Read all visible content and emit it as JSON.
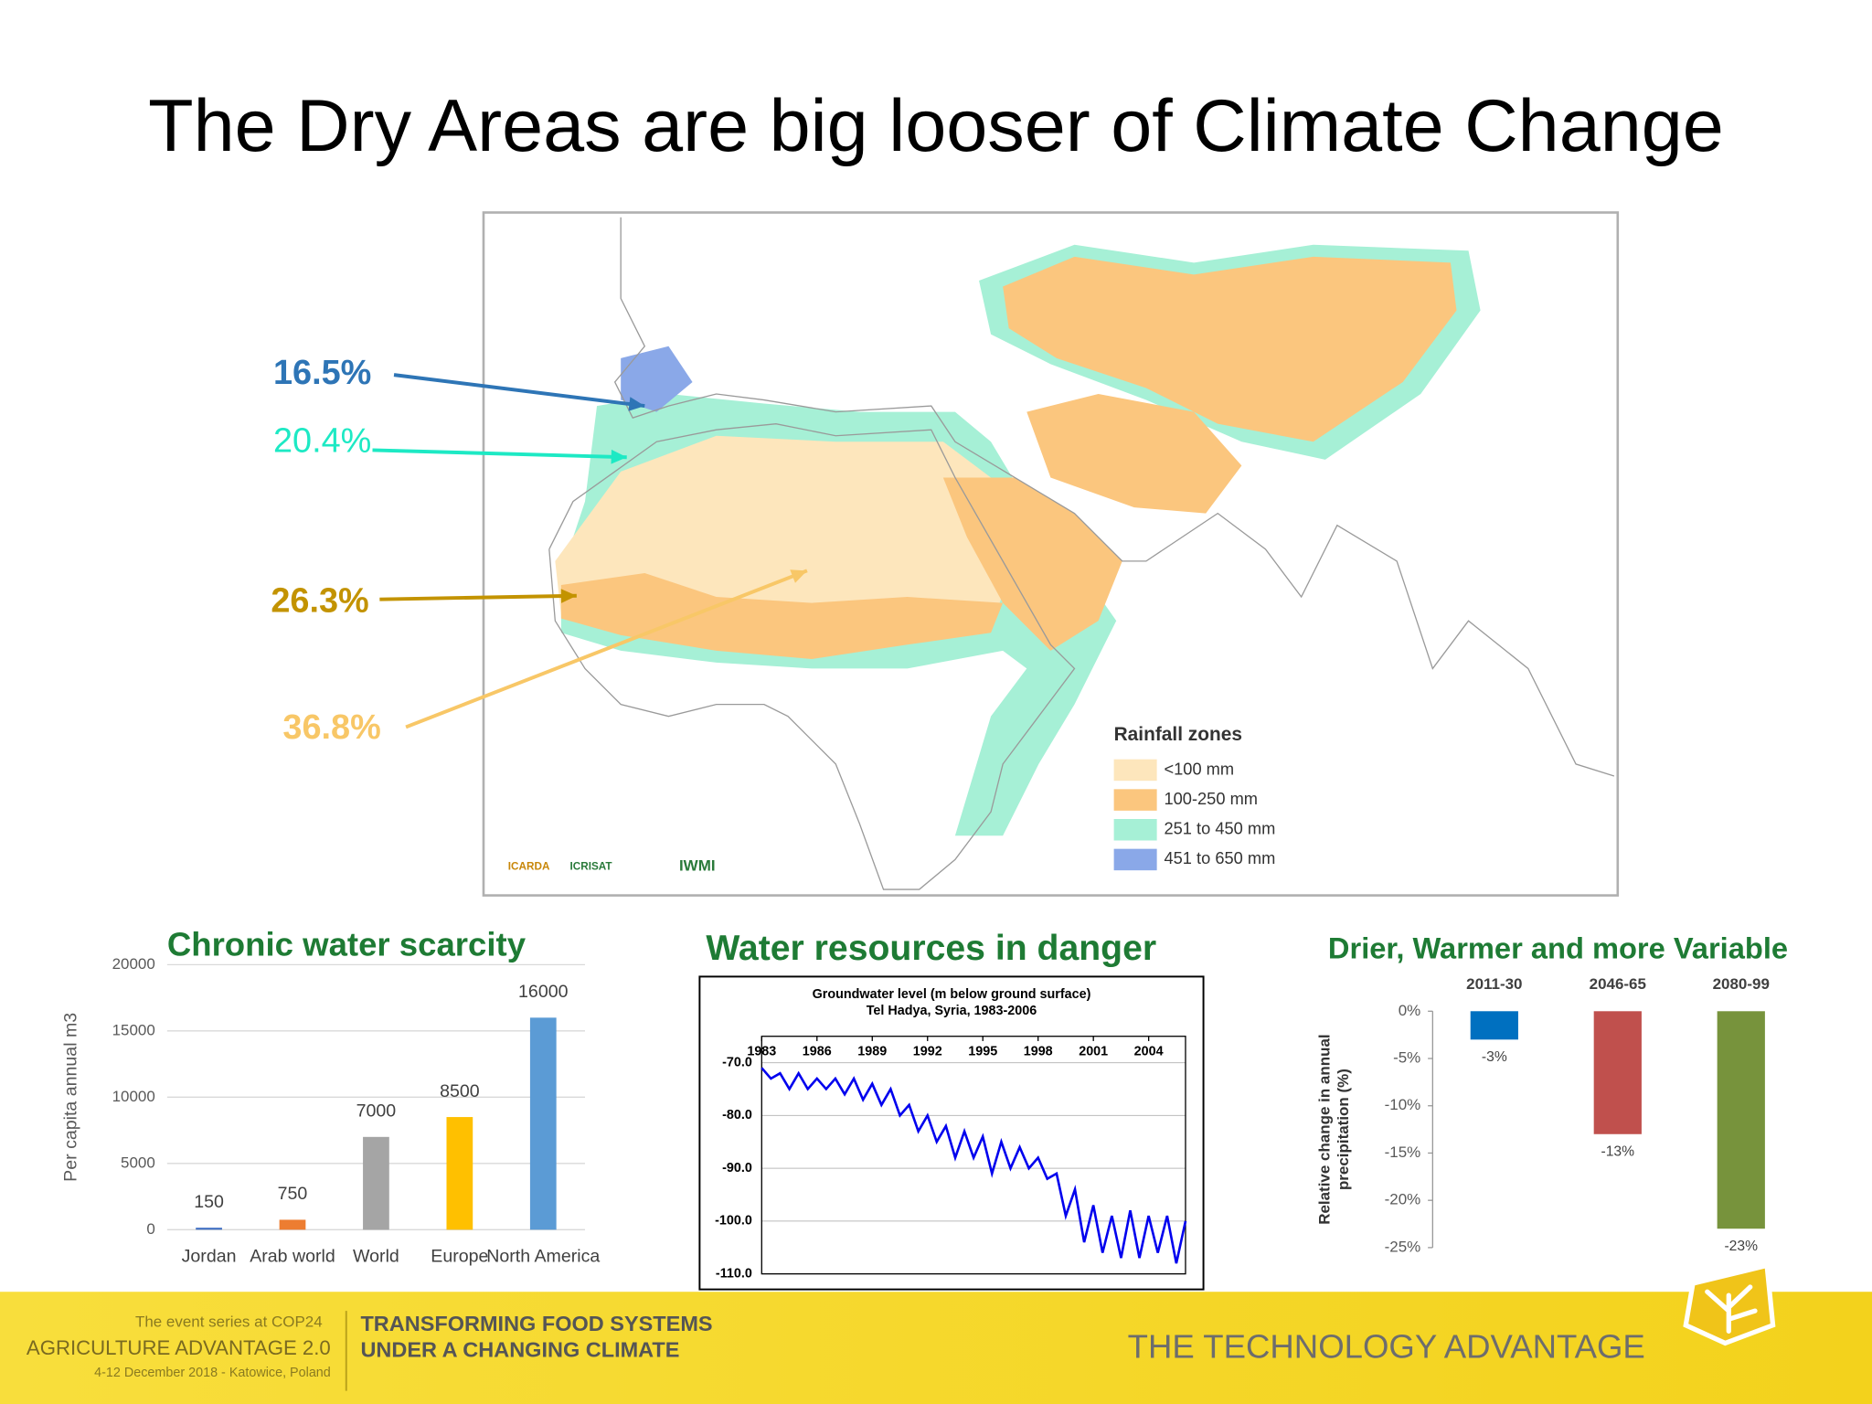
{
  "title": "The Dry Areas are big looser of Climate Change",
  "map": {
    "annotations": [
      {
        "label": "16.5%",
        "color": "#2e75b6"
      },
      {
        "label": "20.4%",
        "color": "#1de9c4"
      },
      {
        "label": "26.3%",
        "color": "#c39300"
      },
      {
        "label": "36.8%",
        "color": "#f8c767"
      }
    ],
    "legend_title": "Rainfall zones",
    "legend": [
      {
        "label": "<100 mm",
        "color": "#fde6bc"
      },
      {
        "label": "100-250 mm",
        "color": "#fbc67e"
      },
      {
        "label": "251 to 450 mm",
        "color": "#a6f0d6"
      },
      {
        "label": "451 to 650 mm",
        "color": "#8aa8e8"
      }
    ],
    "logos": [
      "ICARDA",
      "ICRISAT",
      "IWMI"
    ]
  },
  "chart_data": [
    {
      "type": "bar",
      "title": "Chronic water scarcity",
      "ylabel": "Per capita annual m3",
      "categories": [
        "Jordan",
        "Arab world",
        "World",
        "Europe",
        "North America"
      ],
      "values": [
        150,
        750,
        7000,
        8500,
        16000
      ],
      "colors": [
        "#4472c4",
        "#ed7d31",
        "#a5a5a5",
        "#ffc000",
        "#5b9bd5"
      ],
      "ylim": [
        0,
        20000
      ],
      "yticks": [
        0,
        5000,
        10000,
        15000,
        20000
      ],
      "grid": true
    },
    {
      "type": "line",
      "title": "Water resources in danger",
      "subtitle": [
        "Groundwater level (m below ground surface)",
        "Tel Hadya, Syria, 1983-2006"
      ],
      "x": [
        1983.0,
        1983.5,
        1984.0,
        1984.5,
        1985.0,
        1985.5,
        1986.0,
        1986.5,
        1987.0,
        1987.5,
        1988.0,
        1988.5,
        1989.0,
        1989.5,
        1990.0,
        1990.5,
        1991.0,
        1991.5,
        1992.0,
        1992.5,
        1993.0,
        1993.5,
        1994.0,
        1994.5,
        1995.0,
        1995.5,
        1996.0,
        1996.5,
        1997.0,
        1997.5,
        1998.0,
        1998.5,
        1999.0,
        1999.5,
        2000.0,
        2000.5,
        2001.0,
        2001.5,
        2002.0,
        2002.5,
        2003.0,
        2003.5,
        2004.0,
        2004.5,
        2005.0,
        2005.5,
        2006.0
      ],
      "values": [
        -71,
        -73,
        -72,
        -75,
        -72,
        -75,
        -73,
        -75,
        -73,
        -76,
        -73,
        -77,
        -74,
        -78,
        -75,
        -80,
        -78,
        -83,
        -80,
        -85,
        -82,
        -88,
        -83,
        -88,
        -84,
        -91,
        -85,
        -90,
        -86,
        -90,
        -88,
        -92,
        -91,
        -99,
        -94,
        -104,
        -97,
        -106,
        -99,
        -107,
        -98,
        -107,
        -99,
        -106,
        -99,
        -108,
        -100
      ],
      "color": "#0000ee",
      "xlim": [
        1983,
        2006
      ],
      "xticks": [
        1983,
        1986,
        1989,
        1992,
        1995,
        1998,
        2001,
        2004
      ],
      "ylim": [
        -110,
        -65
      ],
      "yticks": [
        {
          "value": -70,
          "label": "-70.0"
        },
        {
          "value": -80,
          "label": "-80.0"
        },
        {
          "value": -90,
          "label": "-90.0"
        },
        {
          "value": -100,
          "label": "-100.0"
        },
        {
          "value": -110,
          "label": "-110.0"
        }
      ],
      "grid": true
    },
    {
      "type": "bar",
      "title": "Drier, Warmer and more Variable",
      "ylabel": [
        "Relative change in annual",
        "precipitation (%)"
      ],
      "categories": [
        "2011-30",
        "2046-65",
        "2080-99"
      ],
      "values": [
        -3,
        -13,
        -23
      ],
      "value_labels": [
        "-3%",
        "-13%",
        "-23%"
      ],
      "colors": [
        "#0070c0",
        "#c0504d",
        "#77933c"
      ],
      "ylim": [
        -25,
        0
      ],
      "yticks": [
        {
          "value": 0,
          "label": "0%"
        },
        {
          "value": -5,
          "label": "-5%"
        },
        {
          "value": -10,
          "label": "-10%"
        },
        {
          "value": -15,
          "label": "-15%"
        },
        {
          "value": -20,
          "label": "-20%"
        },
        {
          "value": -25,
          "label": "-25%"
        }
      ],
      "grid": false
    }
  ],
  "footer": {
    "event_line": "The event series at COP24",
    "event_name": "AGRICULTURE ADVANTAGE 2.0",
    "event_date": "4-12 December 2018 - Katowice, Poland",
    "theme": [
      "TRANSFORMING FOOD SYSTEMS",
      "UNDER A CHANGING CLIMATE"
    ],
    "tagline": "THE TECHNOLOGY ADVANTAGE"
  }
}
